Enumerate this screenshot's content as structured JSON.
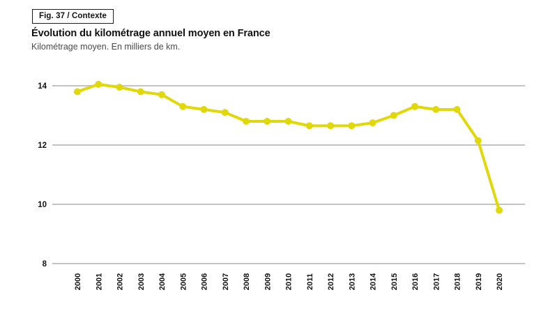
{
  "figure": {
    "tag": "Fig. 37 / Contexte",
    "title": "Évolution du kilométrage annuel moyen en France",
    "subtitle": "Kilométrage moyen. En milliers de km."
  },
  "colors": {
    "line": "#e1d80b",
    "grid": "#c3c3c3",
    "tick_text": "#111111",
    "title_text": "#111111",
    "subtitle_text": "#4a4a4a"
  },
  "chart_data": {
    "type": "line",
    "title": "Évolution du kilométrage annuel moyen en France",
    "subtitle": "Kilométrage moyen. En milliers de km.",
    "xlabel": "",
    "ylabel": "Kilométrage moyen. En milliers de km.",
    "categories": [
      "2000",
      "2001",
      "2002",
      "2003",
      "2004",
      "2005",
      "2006",
      "2007",
      "2008",
      "2009",
      "2010",
      "2011",
      "2012",
      "2013",
      "2014",
      "2015",
      "2016",
      "2017",
      "2018",
      "2019",
      "2020"
    ],
    "values": [
      13.8,
      14.05,
      13.95,
      13.8,
      13.7,
      13.3,
      13.2,
      13.1,
      12.8,
      12.8,
      12.8,
      12.65,
      12.65,
      12.65,
      12.75,
      13.0,
      13.3,
      13.2,
      13.2,
      12.15,
      9.8
    ],
    "yticks": [
      14,
      12,
      10,
      8
    ],
    "ylim": [
      8,
      14.5
    ],
    "grid": true,
    "legend": false,
    "marker": "circle",
    "x_tick_rotation": -90
  }
}
